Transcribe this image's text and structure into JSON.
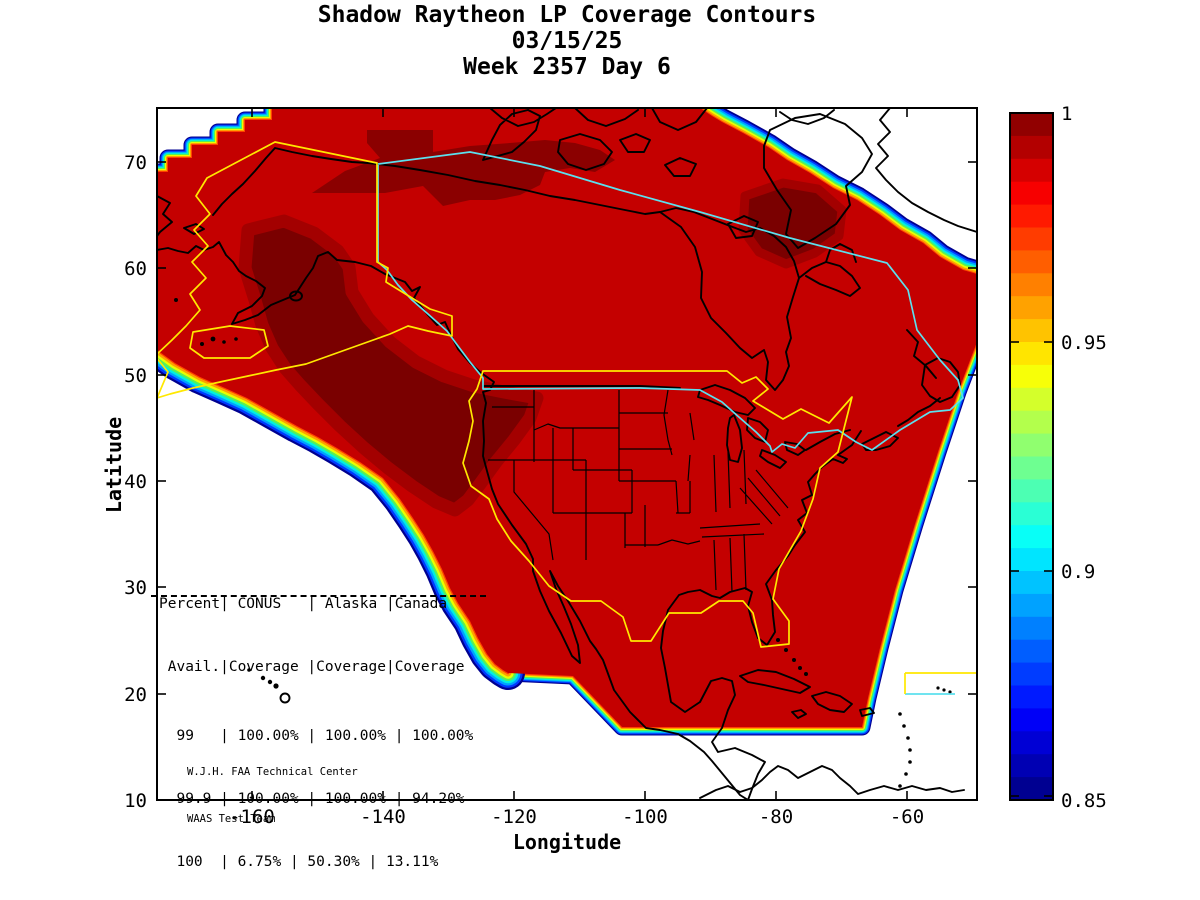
{
  "figure": {
    "title_lines": [
      "Shadow Raytheon LP Coverage Contours",
      "03/15/25",
      "Week 2357 Day 6"
    ]
  },
  "axes": {
    "xlabel": "Longitude",
    "ylabel": "Latitude",
    "x_ticks": [
      "-160",
      "-140",
      "-120",
      "-100",
      "-80",
      "-60"
    ],
    "y_ticks": [
      "70",
      "60",
      "50",
      "40",
      "30",
      "20",
      "10"
    ]
  },
  "colorbar": {
    "min": 0.85,
    "max": 1,
    "tick_labels": [
      "1",
      "0.95",
      "0.9",
      "0.85"
    ]
  },
  "stats_table": {
    "rows": [
      "Percent| CONUS   | Alaska |Canada",
      " Avail.|Coverage |Coverage|Coverage",
      "  99   | 100.00% | 100.00% | 100.00%",
      "  99.9 | 100.00% | 100.00% | 94.20%",
      "  100  | 6.75% | 50.30% | 13.11%"
    ]
  },
  "credit_lines": [
    "W.J.H. FAA Technical Center",
    "WAAS Test Team"
  ],
  "chart_data": {
    "type": "heatmap",
    "title": "Shadow Raytheon LP Coverage Contours",
    "date": "03/15/25",
    "gps_week": "Week 2357 Day 6",
    "xlabel": "Longitude",
    "ylabel": "Latitude",
    "xlim": [
      -175,
      -49
    ],
    "ylim": [
      10,
      75
    ],
    "x_ticks": [
      -160,
      -140,
      -120,
      -100,
      -80,
      -60
    ],
    "y_ticks": [
      70,
      60,
      50,
      40,
      30,
      20,
      10
    ],
    "colorbar": {
      "min": 0.85,
      "max": 1,
      "ticks": [
        1,
        0.95,
        0.9,
        0.85
      ],
      "colormap": "jet",
      "contour_step": 0.005
    },
    "coverage_table": {
      "columns": [
        "Percent Avail.",
        "CONUS Coverage",
        "Alaska Coverage",
        "Canada Coverage"
      ],
      "rows": [
        [
          "99",
          "100.00%",
          "100.00%",
          "100.00%"
        ],
        [
          "99.9",
          "100.00%",
          "100.00%",
          "94.20%"
        ],
        [
          "100",
          "6.75%",
          "50.30%",
          "13.11%"
        ]
      ]
    },
    "regions_outlined": [
      "CONUS",
      "Alaska",
      "Canada"
    ],
    "annotations": [
      "W.J.H. FAA Technical Center",
      "WAAS Test Team"
    ]
  }
}
